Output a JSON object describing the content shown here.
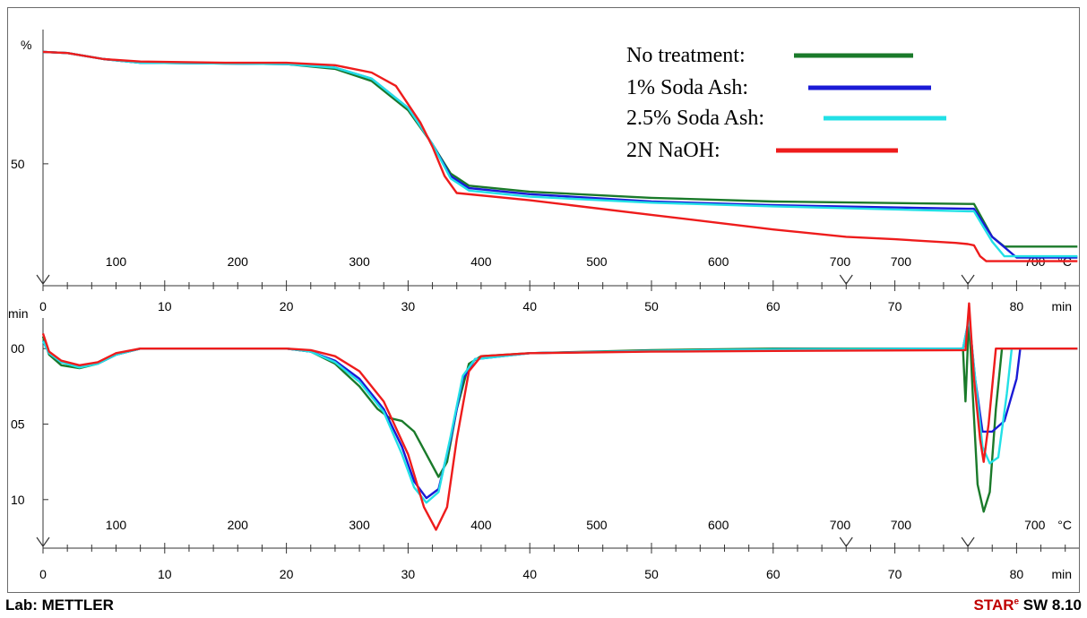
{
  "chart_data": [
    {
      "type": "line",
      "ylabel": "%",
      "ytick_labels": [
        "50"
      ],
      "ylim": [
        8,
        100
      ],
      "xlabel_time": "min",
      "time_ticks": [
        "0",
        "10",
        "20",
        "30",
        "40",
        "50",
        "60",
        "70",
        "80"
      ],
      "temp_unit": "°C",
      "temp_ticks": [
        {
          "label": "100",
          "t": 6
        },
        {
          "label": "200",
          "t": 16
        },
        {
          "label": "300",
          "t": 26
        },
        {
          "label": "400",
          "t": 36
        },
        {
          "label": "500",
          "t": 45.5
        },
        {
          "label": "600",
          "t": 55.5
        },
        {
          "label": "700",
          "t": 65.5
        },
        {
          "label": "700",
          "t": 70.5
        },
        {
          "label": "700",
          "t": 81.5
        }
      ],
      "markers_t": [
        66,
        76
      ],
      "xlim": [
        0,
        85
      ],
      "series": [
        {
          "name": "No treatment:",
          "color": "#1a7a2a",
          "points": [
            [
              0,
              96
            ],
            [
              2,
              95.5
            ],
            [
              5,
              93
            ],
            [
              8,
              91.5
            ],
            [
              15,
              91.2
            ],
            [
              20,
              91
            ],
            [
              24,
              89
            ],
            [
              27,
              84
            ],
            [
              30,
              72
            ],
            [
              32,
              58
            ],
            [
              33.5,
              46
            ],
            [
              35,
              41
            ],
            [
              40,
              38.5
            ],
            [
              50,
              36
            ],
            [
              60,
              34.5
            ],
            [
              76,
              33.5
            ],
            [
              76.5,
              33.5
            ],
            [
              78,
              20
            ],
            [
              79,
              16
            ],
            [
              85,
              16
            ]
          ]
        },
        {
          "name": "1% Soda Ash:",
          "color": "#1a1ad6",
          "points": [
            [
              0,
              96
            ],
            [
              2,
              95.5
            ],
            [
              5,
              93
            ],
            [
              8,
              91.5
            ],
            [
              15,
              91.2
            ],
            [
              20,
              91
            ],
            [
              24,
              89.5
            ],
            [
              27,
              85
            ],
            [
              30,
              73
            ],
            [
              32,
              58
            ],
            [
              33.5,
              45
            ],
            [
              35,
              40
            ],
            [
              40,
              37.5
            ],
            [
              50,
              34.5
            ],
            [
              60,
              33
            ],
            [
              76,
              31.5
            ],
            [
              76.5,
              31.5
            ],
            [
              78,
              20
            ],
            [
              80,
              11.5
            ],
            [
              85,
              11.5
            ]
          ]
        },
        {
          "name": "2.5% Soda Ash:",
          "color": "#22e0e6",
          "points": [
            [
              0,
              96
            ],
            [
              2,
              95.5
            ],
            [
              5,
              93
            ],
            [
              8,
              91.5
            ],
            [
              15,
              91.2
            ],
            [
              20,
              91
            ],
            [
              24,
              89.5
            ],
            [
              27,
              85
            ],
            [
              30,
              73
            ],
            [
              32,
              58
            ],
            [
              33.5,
              44
            ],
            [
              35,
              39
            ],
            [
              40,
              36.5
            ],
            [
              50,
              34
            ],
            [
              60,
              32.5
            ],
            [
              76,
              30.5
            ],
            [
              76.5,
              30.5
            ],
            [
              78,
              18
            ],
            [
              79,
              12
            ],
            [
              85,
              12
            ]
          ]
        },
        {
          "name": "2N NaOH:",
          "color": "#ee1c1c",
          "points": [
            [
              0,
              96
            ],
            [
              2,
              95.5
            ],
            [
              5,
              93
            ],
            [
              8,
              92
            ],
            [
              15,
              91.5
            ],
            [
              20,
              91.5
            ],
            [
              24,
              90.5
            ],
            [
              27,
              87.5
            ],
            [
              29,
              82
            ],
            [
              31,
              67
            ],
            [
              32,
              57
            ],
            [
              33,
              45
            ],
            [
              34,
              38
            ],
            [
              40,
              35
            ],
            [
              50,
              29
            ],
            [
              60,
              23
            ],
            [
              66,
              20
            ],
            [
              70,
              19
            ],
            [
              75,
              17.5
            ],
            [
              76,
              17
            ],
            [
              76.5,
              16.5
            ],
            [
              77,
              12
            ],
            [
              77.5,
              10
            ],
            [
              85,
              10
            ]
          ]
        }
      ]
    },
    {
      "type": "line",
      "ylabel": "min",
      "ytick_labels": [
        "00",
        "05",
        "10"
      ],
      "ylim": [
        -12.8,
        1.2
      ],
      "xlabel_time": "min",
      "time_ticks": [
        "0",
        "10",
        "20",
        "30",
        "40",
        "50",
        "60",
        "70",
        "80"
      ],
      "temp_unit": "°C",
      "temp_ticks": [
        {
          "label": "100",
          "t": 6
        },
        {
          "label": "200",
          "t": 16
        },
        {
          "label": "300",
          "t": 26
        },
        {
          "label": "400",
          "t": 36
        },
        {
          "label": "500",
          "t": 45.5
        },
        {
          "label": "600",
          "t": 55.5
        },
        {
          "label": "700",
          "t": 65.5
        },
        {
          "label": "700",
          "t": 70.5
        },
        {
          "label": "700",
          "t": 81.5
        }
      ],
      "markers_t": [
        66,
        76
      ],
      "xlim": [
        0,
        85
      ],
      "series": [
        {
          "name": "No treatment:",
          "color": "#1a7a2a",
          "points": [
            [
              0,
              0.8
            ],
            [
              0.5,
              -0.4
            ],
            [
              1.5,
              -1.1
            ],
            [
              3,
              -1.3
            ],
            [
              4.5,
              -1.0
            ],
            [
              6,
              -0.4
            ],
            [
              8,
              0
            ],
            [
              20,
              0
            ],
            [
              22,
              -0.2
            ],
            [
              24,
              -1
            ],
            [
              26,
              -2.5
            ],
            [
              27.5,
              -4
            ],
            [
              28.5,
              -4.6
            ],
            [
              29.5,
              -4.8
            ],
            [
              30.5,
              -5.5
            ],
            [
              31.5,
              -7
            ],
            [
              32.5,
              -8.5
            ],
            [
              33.2,
              -7.5
            ],
            [
              34,
              -4
            ],
            [
              35,
              -1
            ],
            [
              36,
              -0.5
            ],
            [
              40,
              -0.3
            ],
            [
              50,
              -0.1
            ],
            [
              60,
              0
            ],
            [
              75.6,
              0
            ],
            [
              75.8,
              -3.5
            ],
            [
              76.1,
              2.2
            ],
            [
              76.4,
              -3
            ],
            [
              76.8,
              -9
            ],
            [
              77.3,
              -10.8
            ],
            [
              77.8,
              -9.5
            ],
            [
              78.3,
              -4
            ],
            [
              78.8,
              0
            ],
            [
              85,
              0
            ]
          ]
        },
        {
          "name": "1% Soda Ash:",
          "color": "#1a1ad6",
          "points": [
            [
              0,
              0.5
            ],
            [
              0.5,
              -0.3
            ],
            [
              1.5,
              -0.9
            ],
            [
              3,
              -1.2
            ],
            [
              4.5,
              -1.0
            ],
            [
              6,
              -0.4
            ],
            [
              8,
              0
            ],
            [
              20,
              0
            ],
            [
              22,
              -0.2
            ],
            [
              24,
              -0.8
            ],
            [
              26,
              -2
            ],
            [
              28,
              -4
            ],
            [
              29.5,
              -6.5
            ],
            [
              30.5,
              -8.8
            ],
            [
              31.5,
              -9.9
            ],
            [
              32.5,
              -9.3
            ],
            [
              33.5,
              -6
            ],
            [
              34.5,
              -2
            ],
            [
              35.5,
              -0.7
            ],
            [
              40,
              -0.3
            ],
            [
              50,
              -0.15
            ],
            [
              60,
              -0.05
            ],
            [
              75.6,
              0
            ],
            [
              76.1,
              2
            ],
            [
              76.6,
              -2
            ],
            [
              77.2,
              -5.5
            ],
            [
              78,
              -5.5
            ],
            [
              79,
              -4.8
            ],
            [
              80,
              -2
            ],
            [
              80.3,
              0
            ],
            [
              85,
              0
            ]
          ]
        },
        {
          "name": "2.5% Soda Ash:",
          "color": "#22e0e6",
          "points": [
            [
              0,
              0.5
            ],
            [
              0.5,
              -0.3
            ],
            [
              1.5,
              -0.9
            ],
            [
              3,
              -1.25
            ],
            [
              4.5,
              -1.0
            ],
            [
              6,
              -0.4
            ],
            [
              8,
              0
            ],
            [
              20,
              0
            ],
            [
              22,
              -0.2
            ],
            [
              24,
              -0.9
            ],
            [
              26,
              -2.2
            ],
            [
              28,
              -4.2
            ],
            [
              29.5,
              -7
            ],
            [
              30.5,
              -9.2
            ],
            [
              31.5,
              -10.2
            ],
            [
              32.5,
              -9.5
            ],
            [
              33.5,
              -5.8
            ],
            [
              34.5,
              -1.8
            ],
            [
              35.5,
              -0.7
            ],
            [
              40,
              -0.3
            ],
            [
              50,
              -0.15
            ],
            [
              60,
              -0.05
            ],
            [
              75.6,
              0
            ],
            [
              76.1,
              2
            ],
            [
              76.6,
              -2
            ],
            [
              77.2,
              -6.5
            ],
            [
              77.8,
              -7.6
            ],
            [
              78.5,
              -7.2
            ],
            [
              79.2,
              -3
            ],
            [
              79.6,
              0
            ],
            [
              85,
              0
            ]
          ]
        },
        {
          "name": "2N NaOH:",
          "color": "#ee1c1c",
          "points": [
            [
              0,
              1.0
            ],
            [
              0.5,
              -0.2
            ],
            [
              1.5,
              -0.8
            ],
            [
              3,
              -1.1
            ],
            [
              4.5,
              -0.9
            ],
            [
              6,
              -0.3
            ],
            [
              8,
              0
            ],
            [
              20,
              0
            ],
            [
              22,
              -0.1
            ],
            [
              24,
              -0.5
            ],
            [
              26,
              -1.5
            ],
            [
              28,
              -3.5
            ],
            [
              30,
              -7
            ],
            [
              31.3,
              -10.5
            ],
            [
              32.3,
              -12
            ],
            [
              33.2,
              -10.5
            ],
            [
              34,
              -6
            ],
            [
              35,
              -1.5
            ],
            [
              36,
              -0.5
            ],
            [
              40,
              -0.3
            ],
            [
              50,
              -0.2
            ],
            [
              60,
              -0.15
            ],
            [
              75.8,
              -0.1
            ],
            [
              76.1,
              3
            ],
            [
              76.5,
              -2
            ],
            [
              77,
              -6
            ],
            [
              77.3,
              -7.5
            ],
            [
              77.7,
              -5
            ],
            [
              78.3,
              0
            ],
            [
              85,
              0
            ]
          ]
        }
      ]
    }
  ],
  "footer": {
    "lab": "Lab: METTLER",
    "brand": "STAR",
    "brand_mark": "e",
    "software": " SW 8.10"
  }
}
